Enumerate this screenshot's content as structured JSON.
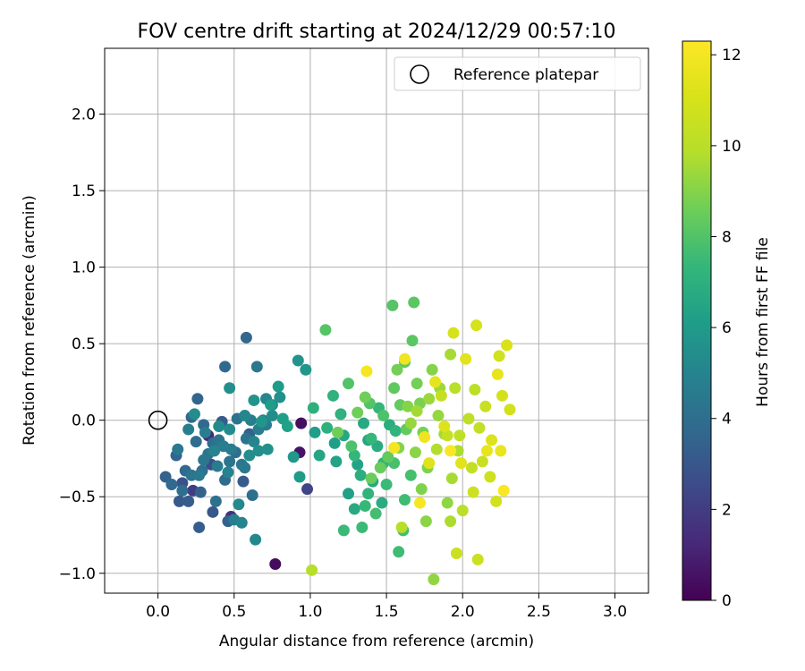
{
  "chart_data": {
    "type": "scatter",
    "title": "FOV centre drift starting at 2024/12/29 00:57:10",
    "xlabel": "Angular distance from reference (arcmin)",
    "ylabel": "Rotation from reference (arcmin)",
    "xlim": [
      -0.35,
      3.22
    ],
    "ylim": [
      -1.13,
      2.43
    ],
    "xticks": [
      "0.0",
      "0.5",
      "1.0",
      "1.5",
      "2.0",
      "2.5",
      "3.0"
    ],
    "yticks": [
      "−1.0",
      "−0.5",
      "0.0",
      "0.5",
      "1.0",
      "1.5",
      "2.0"
    ],
    "grid": true,
    "legend": {
      "placement": "top-right",
      "entries": [
        "Reference platepar"
      ]
    },
    "reference_point": {
      "x": 0.0,
      "y": 0.0,
      "label": "Reference platepar"
    },
    "colorbar": {
      "label": "Hours from first FF file",
      "range": [
        0,
        12.3
      ],
      "ticks": [
        "0",
        "2",
        "4",
        "6",
        "8",
        "10",
        "12"
      ],
      "colormap": "viridis"
    },
    "series": [
      {
        "columns": [
          "x",
          "y",
          "hours"
        ],
        "points": [
          [
            0.77,
            -0.94,
            0.3
          ],
          [
            0.94,
            -0.02,
            0.4
          ],
          [
            0.93,
            -0.21,
            0.6
          ],
          [
            0.33,
            -0.1,
            1.2
          ],
          [
            0.48,
            -0.63,
            1.5
          ],
          [
            0.23,
            -0.46,
            2.0
          ],
          [
            0.98,
            -0.45,
            2.3
          ],
          [
            0.35,
            -0.29,
            2.6
          ],
          [
            0.16,
            -0.41,
            2.8
          ],
          [
            0.36,
            -0.6,
            3.0
          ],
          [
            0.14,
            -0.53,
            3.1
          ],
          [
            0.42,
            -0.01,
            3.2
          ],
          [
            0.56,
            -0.4,
            3.2
          ],
          [
            0.2,
            -0.53,
            3.3
          ],
          [
            0.27,
            -0.7,
            3.3
          ],
          [
            0.46,
            -0.66,
            3.4
          ],
          [
            0.6,
            -0.09,
            3.4
          ],
          [
            0.28,
            -0.47,
            3.5
          ],
          [
            0.05,
            -0.37,
            3.5
          ],
          [
            0.12,
            -0.23,
            3.6
          ],
          [
            0.26,
            0.14,
            3.6
          ],
          [
            0.44,
            0.35,
            3.7
          ],
          [
            0.58,
            0.54,
            3.7
          ],
          [
            0.22,
            0.02,
            3.7
          ],
          [
            0.3,
            -0.03,
            3.8
          ],
          [
            0.09,
            -0.42,
            3.8
          ],
          [
            0.18,
            -0.33,
            3.8
          ],
          [
            0.25,
            -0.14,
            3.9
          ],
          [
            0.36,
            -0.15,
            3.9
          ],
          [
            0.44,
            -0.39,
            3.9
          ],
          [
            0.51,
            -0.21,
            4.0
          ],
          [
            0.62,
            -0.49,
            4.0
          ],
          [
            0.16,
            -0.46,
            4.0
          ],
          [
            0.29,
            -0.33,
            4.1
          ],
          [
            0.38,
            -0.53,
            4.1
          ],
          [
            0.47,
            -0.27,
            4.2
          ],
          [
            0.52,
            0.01,
            4.2
          ],
          [
            0.58,
            -0.12,
            4.2
          ],
          [
            0.22,
            -0.36,
            4.3
          ],
          [
            0.33,
            -0.22,
            4.3
          ],
          [
            0.4,
            -0.13,
            4.3
          ],
          [
            0.55,
            -0.29,
            4.4
          ],
          [
            0.65,
            0.35,
            4.4
          ],
          [
            0.3,
            -0.26,
            4.4
          ],
          [
            0.13,
            -0.19,
            4.5
          ],
          [
            0.27,
            -0.36,
            4.5
          ],
          [
            0.57,
            -0.31,
            4.5
          ],
          [
            0.71,
            -0.03,
            4.6
          ],
          [
            0.48,
            -0.19,
            4.6
          ],
          [
            0.39,
            -0.3,
            4.6
          ],
          [
            0.43,
            -0.17,
            4.7
          ],
          [
            0.31,
            -0.08,
            4.7
          ],
          [
            0.66,
            -0.06,
            4.7
          ],
          [
            0.2,
            -0.06,
            4.8
          ],
          [
            0.5,
            -0.65,
            4.8
          ],
          [
            0.61,
            0.0,
            4.8
          ],
          [
            0.69,
            0.0,
            4.9
          ],
          [
            0.75,
            0.1,
            4.9
          ],
          [
            0.46,
            -0.34,
            4.9
          ],
          [
            0.55,
            -0.67,
            5.0
          ],
          [
            0.63,
            -0.14,
            5.0
          ],
          [
            0.37,
            -0.2,
            5.0
          ],
          [
            0.57,
            0.03,
            5.1
          ],
          [
            0.71,
            0.14,
            5.1
          ],
          [
            0.64,
            -0.78,
            5.2
          ],
          [
            0.53,
            -0.55,
            5.2
          ],
          [
            0.47,
            -0.06,
            5.3
          ],
          [
            0.4,
            -0.04,
            5.3
          ],
          [
            0.24,
            0.04,
            5.4
          ],
          [
            0.6,
            -0.23,
            5.4
          ],
          [
            0.75,
            0.03,
            5.4
          ],
          [
            0.66,
            -0.2,
            5.5
          ],
          [
            0.47,
            0.21,
            5.5
          ],
          [
            0.72,
            -0.19,
            5.6
          ],
          [
            0.8,
            0.15,
            5.6
          ],
          [
            0.63,
            0.13,
            5.7
          ],
          [
            0.92,
            0.39,
            5.7
          ],
          [
            0.97,
            0.33,
            5.8
          ],
          [
            0.68,
            -0.01,
            5.8
          ],
          [
            0.89,
            -0.24,
            5.9
          ],
          [
            0.79,
            0.22,
            6.0
          ],
          [
            0.93,
            -0.37,
            6.0
          ],
          [
            1.03,
            -0.08,
            6.1
          ],
          [
            0.74,
            0.1,
            6.1
          ],
          [
            0.82,
            0.01,
            6.2
          ],
          [
            1.16,
            -0.15,
            6.2
          ],
          [
            0.85,
            -0.04,
            6.3
          ],
          [
            1.25,
            -0.48,
            6.3
          ],
          [
            1.31,
            -0.29,
            6.4
          ],
          [
            1.17,
            -0.27,
            6.4
          ],
          [
            1.38,
            -0.13,
            6.5
          ],
          [
            1.06,
            -0.23,
            6.5
          ],
          [
            1.22,
            -0.1,
            6.6
          ],
          [
            1.41,
            -0.4,
            6.6
          ],
          [
            1.29,
            -0.58,
            6.7
          ],
          [
            1.35,
            -0.02,
            6.7
          ],
          [
            1.44,
            -0.17,
            6.8
          ],
          [
            1.47,
            -0.54,
            6.8
          ],
          [
            1.33,
            -0.36,
            6.9
          ],
          [
            1.52,
            -0.03,
            6.9
          ],
          [
            1.02,
            0.08,
            7.0
          ],
          [
            1.11,
            -0.05,
            7.0
          ],
          [
            1.2,
            0.04,
            7.1
          ],
          [
            1.15,
            0.16,
            7.1
          ],
          [
            1.48,
            -0.28,
            7.2
          ],
          [
            1.38,
            -0.48,
            7.2
          ],
          [
            1.56,
            -0.07,
            7.2
          ],
          [
            1.29,
            -0.23,
            7.3
          ],
          [
            1.45,
            0.08,
            7.3
          ],
          [
            1.4,
            -0.12,
            7.4
          ],
          [
            1.36,
            -0.56,
            7.4
          ],
          [
            1.5,
            -0.42,
            7.5
          ],
          [
            1.22,
            -0.72,
            7.5
          ],
          [
            1.34,
            -0.7,
            7.5
          ],
          [
            1.62,
            -0.52,
            7.6
          ],
          [
            1.58,
            -0.86,
            7.6
          ],
          [
            1.61,
            -0.72,
            7.7
          ],
          [
            1.43,
            -0.61,
            7.7
          ],
          [
            1.55,
            -0.28,
            7.8
          ],
          [
            1.66,
            -0.36,
            7.8
          ],
          [
            1.27,
            -0.17,
            7.9
          ],
          [
            1.48,
            0.03,
            7.9
          ],
          [
            1.39,
            0.11,
            8.0
          ],
          [
            1.25,
            0.24,
            8.0
          ],
          [
            1.1,
            0.59,
            8.1
          ],
          [
            1.54,
            0.75,
            8.1
          ],
          [
            1.68,
            0.77,
            8.2
          ],
          [
            1.67,
            0.52,
            8.2
          ],
          [
            1.62,
            0.38,
            8.3
          ],
          [
            1.55,
            0.21,
            8.3
          ],
          [
            1.59,
            0.1,
            8.4
          ],
          [
            1.63,
            -0.06,
            8.4
          ],
          [
            1.51,
            -0.24,
            8.4
          ],
          [
            1.4,
            -0.38,
            8.5
          ],
          [
            1.46,
            -0.31,
            8.5
          ],
          [
            1.36,
            0.15,
            8.6
          ],
          [
            1.31,
            0.05,
            8.6
          ],
          [
            1.18,
            -0.08,
            8.6
          ],
          [
            1.57,
            0.33,
            8.7
          ],
          [
            1.7,
            0.24,
            8.7
          ],
          [
            1.72,
            0.11,
            8.8
          ],
          [
            1.74,
            -0.08,
            8.8
          ],
          [
            1.77,
            -0.31,
            8.9
          ],
          [
            1.73,
            -0.45,
            8.9
          ],
          [
            1.8,
            0.33,
            9.0
          ],
          [
            1.64,
            0.09,
            9.0
          ],
          [
            1.58,
            -0.18,
            9.0
          ],
          [
            1.69,
            -0.21,
            9.1
          ],
          [
            1.76,
            -0.66,
            9.1
          ],
          [
            1.81,
            -1.04,
            9.2
          ],
          [
            1.9,
            -0.54,
            9.2
          ],
          [
            1.84,
            0.03,
            9.3
          ],
          [
            1.66,
            -0.02,
            9.3
          ],
          [
            1.78,
            0.14,
            9.4
          ],
          [
            1.85,
            0.21,
            9.4
          ],
          [
            1.88,
            -0.09,
            9.5
          ],
          [
            1.7,
            0.06,
            9.5
          ],
          [
            1.92,
            0.43,
            9.6
          ],
          [
            1.93,
            -0.38,
            9.6
          ],
          [
            1.97,
            -0.2,
            9.7
          ],
          [
            1.92,
            -0.66,
            9.7
          ],
          [
            1.83,
            -0.19,
            9.8
          ],
          [
            1.01,
            -0.98,
            9.9
          ],
          [
            1.6,
            -0.7,
            9.9
          ],
          [
            2.0,
            -0.59,
            10.0
          ],
          [
            1.95,
            0.21,
            10.0
          ],
          [
            2.08,
            0.2,
            10.1
          ],
          [
            2.04,
            0.01,
            10.2
          ],
          [
            1.98,
            -0.1,
            10.2
          ],
          [
            2.11,
            -0.05,
            10.3
          ],
          [
            2.06,
            -0.31,
            10.3
          ],
          [
            1.9,
            -0.1,
            10.4
          ],
          [
            1.86,
            0.16,
            10.4
          ],
          [
            2.13,
            -0.27,
            10.5
          ],
          [
            2.15,
            0.09,
            10.5
          ],
          [
            1.96,
            -0.87,
            10.6
          ],
          [
            2.1,
            -0.91,
            10.6
          ],
          [
            2.18,
            -0.37,
            10.7
          ],
          [
            2.07,
            -0.47,
            10.7
          ],
          [
            2.22,
            -0.53,
            10.8
          ],
          [
            2.24,
            0.42,
            10.8
          ],
          [
            2.26,
            0.16,
            10.9
          ],
          [
            2.31,
            0.07,
            10.9
          ],
          [
            1.94,
            0.57,
            11.0
          ],
          [
            2.09,
            0.62,
            11.0
          ],
          [
            2.29,
            0.49,
            11.1
          ],
          [
            2.19,
            -0.13,
            11.2
          ],
          [
            1.88,
            -0.04,
            11.2
          ],
          [
            1.78,
            -0.28,
            11.3
          ],
          [
            1.99,
            -0.28,
            11.4
          ],
          [
            2.02,
            0.4,
            11.4
          ],
          [
            1.82,
            0.25,
            11.5
          ],
          [
            2.23,
            0.3,
            11.6
          ],
          [
            2.16,
            -0.2,
            11.6
          ],
          [
            2.25,
            -0.2,
            11.7
          ],
          [
            1.75,
            -0.11,
            11.8
          ],
          [
            1.62,
            0.4,
            11.9
          ],
          [
            1.55,
            -0.18,
            12.0
          ],
          [
            1.37,
            0.32,
            12.0
          ],
          [
            1.72,
            -0.54,
            12.1
          ],
          [
            2.27,
            -0.46,
            12.2
          ],
          [
            1.92,
            -0.2,
            12.2
          ]
        ]
      }
    ]
  }
}
